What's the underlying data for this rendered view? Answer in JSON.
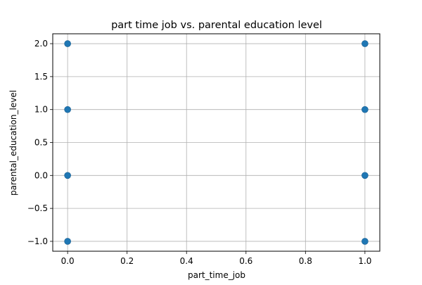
{
  "chart_data": {
    "type": "scatter",
    "title": "part time job vs. parental education level",
    "xlabel": "part_time_job",
    "ylabel": "parental_education_level",
    "xlim": [
      -0.05,
      1.05
    ],
    "ylim": [
      -1.15,
      2.15
    ],
    "xticks": [
      0.0,
      0.2,
      0.4,
      0.6,
      0.8,
      1.0
    ],
    "xtick_labels": [
      "0.0",
      "0.2",
      "0.4",
      "0.6",
      "0.8",
      "1.0"
    ],
    "yticks": [
      -1.0,
      -0.5,
      0.0,
      0.5,
      1.0,
      1.5,
      2.0
    ],
    "ytick_labels": [
      "−1.0",
      "−0.5",
      "0.0",
      "0.5",
      "1.0",
      "1.5",
      "2.0"
    ],
    "grid": true,
    "marker_color": "#1f77b4",
    "points": [
      {
        "x": 0,
        "y": 2
      },
      {
        "x": 0,
        "y": 1
      },
      {
        "x": 0,
        "y": 0
      },
      {
        "x": 0,
        "y": -1
      },
      {
        "x": 1,
        "y": 2
      },
      {
        "x": 1,
        "y": 1
      },
      {
        "x": 1,
        "y": 0
      },
      {
        "x": 1,
        "y": -1
      }
    ]
  }
}
